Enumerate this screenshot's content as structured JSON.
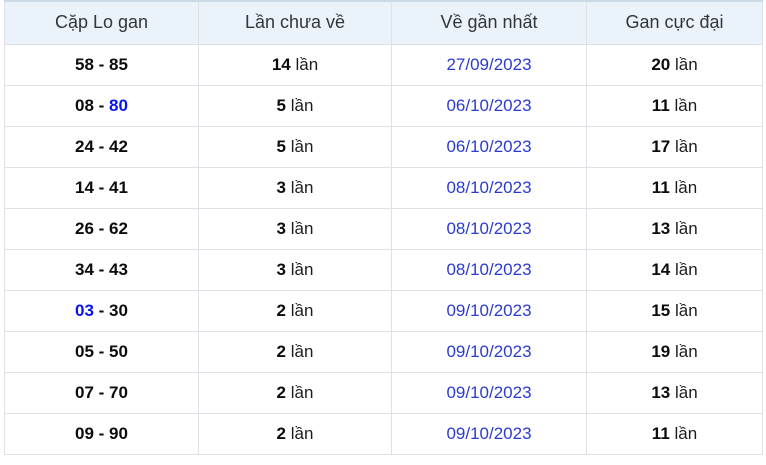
{
  "colors": {
    "header_bg": "#ebf3fa",
    "grid_border": "#dee2e7",
    "table_top_border": "#ccd9e6",
    "header_text": "#32363b",
    "body_text": "#0b0c0d",
    "date_link_blue": "#2b3bce",
    "pair_link_blue": "#0713f0"
  },
  "table": {
    "headers": [
      "Cặp Lo gan",
      "Lần chưa về",
      "Về gần nhất",
      "Gan cực đại"
    ],
    "separator": " - ",
    "unit_suffix": "lần",
    "rows": [
      {
        "pair_a": "58",
        "pair_b": "85",
        "pair_a_link": false,
        "pair_b_link": false,
        "missed": "14",
        "last_date": "27/09/2023",
        "max_gan": "20"
      },
      {
        "pair_a": "08",
        "pair_b": "80",
        "pair_a_link": false,
        "pair_b_link": true,
        "missed": "5",
        "last_date": "06/10/2023",
        "max_gan": "11"
      },
      {
        "pair_a": "24",
        "pair_b": "42",
        "pair_a_link": false,
        "pair_b_link": false,
        "missed": "5",
        "last_date": "06/10/2023",
        "max_gan": "17"
      },
      {
        "pair_a": "14",
        "pair_b": "41",
        "pair_a_link": false,
        "pair_b_link": false,
        "missed": "3",
        "last_date": "08/10/2023",
        "max_gan": "11"
      },
      {
        "pair_a": "26",
        "pair_b": "62",
        "pair_a_link": false,
        "pair_b_link": false,
        "missed": "3",
        "last_date": "08/10/2023",
        "max_gan": "13"
      },
      {
        "pair_a": "34",
        "pair_b": "43",
        "pair_a_link": false,
        "pair_b_link": false,
        "missed": "3",
        "last_date": "08/10/2023",
        "max_gan": "14"
      },
      {
        "pair_a": "03",
        "pair_b": "30",
        "pair_a_link": true,
        "pair_b_link": false,
        "missed": "2",
        "last_date": "09/10/2023",
        "max_gan": "15"
      },
      {
        "pair_a": "05",
        "pair_b": "50",
        "pair_a_link": false,
        "pair_b_link": false,
        "missed": "2",
        "last_date": "09/10/2023",
        "max_gan": "19"
      },
      {
        "pair_a": "07",
        "pair_b": "70",
        "pair_a_link": false,
        "pair_b_link": false,
        "missed": "2",
        "last_date": "09/10/2023",
        "max_gan": "13"
      },
      {
        "pair_a": "09",
        "pair_b": "90",
        "pair_a_link": false,
        "pair_b_link": false,
        "missed": "2",
        "last_date": "09/10/2023",
        "max_gan": "11"
      }
    ]
  }
}
